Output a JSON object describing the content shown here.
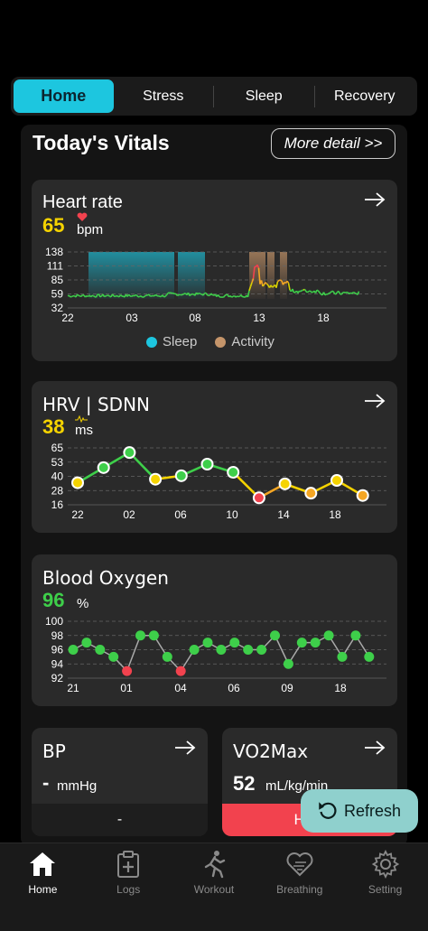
{
  "tabs": [
    {
      "label": "Home",
      "active": true
    },
    {
      "label": "Stress",
      "active": false
    },
    {
      "label": "Sleep",
      "active": false
    },
    {
      "label": "Recovery",
      "active": false
    }
  ],
  "header": {
    "title": "Today's Vitals",
    "more_label": "More detail >>"
  },
  "heart_rate": {
    "title": "Heart rate",
    "value": "65",
    "unit": "bpm",
    "value_color": "#f5d300",
    "legend": [
      {
        "label": "Sleep",
        "color": "#1dc6df"
      },
      {
        "label": "Activity",
        "color": "#c5956a"
      }
    ],
    "chart_data": {
      "type": "line",
      "y_ticks": [
        "138",
        "111",
        "85",
        "59",
        "32"
      ],
      "x_ticks": [
        "22",
        "03",
        "08",
        "13",
        "18"
      ],
      "ylim": [
        32,
        138
      ],
      "grid": true
    }
  },
  "hrv": {
    "title": "HRV | SDNN",
    "value": "38",
    "unit": "ms",
    "value_color": "#f5d300",
    "chart_data": {
      "type": "line",
      "y_ticks": [
        "65",
        "53",
        "40",
        "28",
        "16"
      ],
      "x_ticks": [
        "22",
        "02",
        "06",
        "10",
        "14",
        "18"
      ],
      "ylim": [
        16,
        65
      ],
      "values": [
        35,
        48,
        61,
        38,
        41,
        51,
        44,
        22,
        34,
        26,
        37,
        24
      ],
      "grid": true
    }
  },
  "blood_oxygen": {
    "title": "Blood Oxygen",
    "value": "96",
    "unit": "%",
    "value_color": "#3ecf4a",
    "chart_data": {
      "type": "line",
      "y_ticks": [
        "100",
        "98",
        "96",
        "94",
        "92"
      ],
      "x_ticks": [
        "21",
        "01",
        "04",
        "06",
        "09",
        "18"
      ],
      "ylim": [
        92,
        100
      ],
      "values": [
        96,
        97,
        96,
        95,
        93,
        98,
        98,
        95,
        93,
        96,
        97,
        96,
        97,
        96,
        96,
        98,
        94,
        97,
        97,
        98,
        95,
        98,
        95
      ],
      "grid": true
    }
  },
  "bp": {
    "title": "BP",
    "value": "-",
    "unit": "mmHg",
    "footer": "-"
  },
  "vo2max": {
    "title": "VO2Max",
    "value": "52",
    "unit": "mL/kg/min",
    "footer": "High"
  },
  "refresh": {
    "label": "Refresh"
  },
  "nav": [
    {
      "label": "Home",
      "icon": "home-icon",
      "active": true
    },
    {
      "label": "Logs",
      "icon": "logs-icon",
      "active": false
    },
    {
      "label": "Workout",
      "icon": "workout-icon",
      "active": false
    },
    {
      "label": "Breathing",
      "icon": "breathing-icon",
      "active": false
    },
    {
      "label": "Setting",
      "icon": "gear-icon",
      "active": false
    }
  ]
}
